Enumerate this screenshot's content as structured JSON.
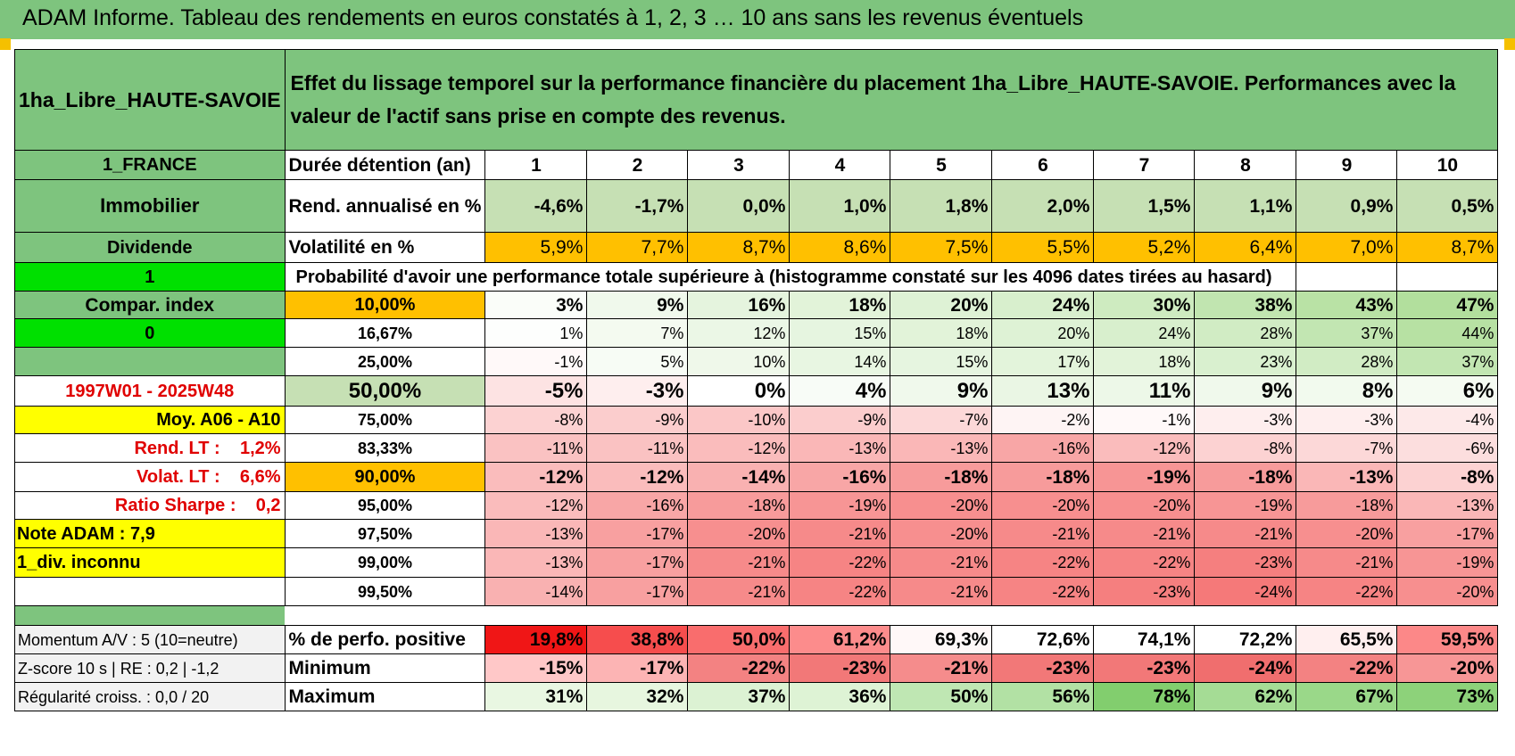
{
  "header": {
    "title": "ADAM Informe. Tableau des rendements en euros constatés à 1, 2, 3 … 10 ans sans les revenus éventuels"
  },
  "asset": {
    "name": "1ha_Libre_HAUTE-SAVOIE",
    "description": "Effet du lissage temporel sur la performance financière du placement 1ha_Libre_HAUTE-SAVOIE. Performances avec la valeur de l'actif sans prise en compte des revenus."
  },
  "left_labels": {
    "country": "1_FRANCE",
    "category": "Immobilier",
    "income_type": "Dividende",
    "flag_1": "1",
    "compar_index": "Compar. index",
    "flag_0": "0",
    "period": "1997W01 - 2025W48",
    "moy": "Moy. A06 - A10",
    "rend_lt": "Rend. LT :    1,2%",
    "volat_lt": "Volat. LT :    6,6%",
    "sharpe": "Ratio Sharpe :    0,2",
    "note_adam": "Note ADAM : 7,9",
    "div": "1_div. inconnu",
    "momentum": "Momentum A/V : 5 (10=neutre)",
    "zscore": "Z-score 10 s | RE : 0,2 | -1,2",
    "regularite": "Régularité croiss. : 0,0 / 20"
  },
  "durations": {
    "label": "Durée détention (an)",
    "values": [
      "1",
      "2",
      "3",
      "4",
      "5",
      "6",
      "7",
      "8",
      "9",
      "10"
    ]
  },
  "rend": {
    "label": "Rend. annualisé en %",
    "values": [
      "-4,6%",
      "-1,7%",
      "0,0%",
      "1,0%",
      "1,8%",
      "2,0%",
      "1,5%",
      "1,1%",
      "0,9%",
      "0,5%"
    ]
  },
  "volat": {
    "label": "Volatilité en %",
    "values": [
      "5,9%",
      "7,7%",
      "8,7%",
      "8,6%",
      "7,5%",
      "5,5%",
      "5,2%",
      "6,4%",
      "7,0%",
      "8,7%"
    ]
  },
  "probability_title": "Probabilité d'avoir une performance totale supérieure à (histogramme constaté sur les 4096 dates tirées au hasard)",
  "probabilities": [
    {
      "label": "10,00%",
      "values": [
        "3%",
        "9%",
        "16%",
        "18%",
        "20%",
        "24%",
        "30%",
        "38%",
        "43%",
        "47%"
      ]
    },
    {
      "label": "16,67%",
      "values": [
        "1%",
        "7%",
        "12%",
        "15%",
        "18%",
        "20%",
        "24%",
        "28%",
        "37%",
        "44%"
      ]
    },
    {
      "label": "25,00%",
      "values": [
        "-1%",
        "5%",
        "10%",
        "14%",
        "15%",
        "17%",
        "18%",
        "23%",
        "28%",
        "37%"
      ]
    },
    {
      "label": "50,00%",
      "values": [
        "-5%",
        "-3%",
        "0%",
        "4%",
        "9%",
        "13%",
        "11%",
        "9%",
        "8%",
        "6%"
      ]
    },
    {
      "label": "75,00%",
      "values": [
        "-8%",
        "-9%",
        "-10%",
        "-9%",
        "-7%",
        "-2%",
        "-1%",
        "-3%",
        "-3%",
        "-4%"
      ]
    },
    {
      "label": "83,33%",
      "values": [
        "-11%",
        "-11%",
        "-12%",
        "-13%",
        "-13%",
        "-16%",
        "-12%",
        "-8%",
        "-7%",
        "-6%"
      ]
    },
    {
      "label": "90,00%",
      "values": [
        "-12%",
        "-12%",
        "-14%",
        "-16%",
        "-18%",
        "-18%",
        "-19%",
        "-18%",
        "-13%",
        "-8%"
      ]
    },
    {
      "label": "95,00%",
      "values": [
        "-12%",
        "-16%",
        "-18%",
        "-19%",
        "-20%",
        "-20%",
        "-20%",
        "-19%",
        "-18%",
        "-13%"
      ]
    },
    {
      "label": "97,50%",
      "values": [
        "-13%",
        "-17%",
        "-20%",
        "-21%",
        "-20%",
        "-21%",
        "-21%",
        "-21%",
        "-20%",
        "-17%"
      ]
    },
    {
      "label": "99,00%",
      "values": [
        "-13%",
        "-17%",
        "-21%",
        "-22%",
        "-21%",
        "-22%",
        "-22%",
        "-23%",
        "-21%",
        "-19%"
      ]
    },
    {
      "label": "99,50%",
      "values": [
        "-14%",
        "-17%",
        "-21%",
        "-22%",
        "-21%",
        "-22%",
        "-23%",
        "-24%",
        "-22%",
        "-20%"
      ]
    }
  ],
  "positive": {
    "label": "% de perfo. positive",
    "values": [
      "19,8%",
      "38,8%",
      "50,0%",
      "61,2%",
      "69,3%",
      "72,6%",
      "74,1%",
      "72,2%",
      "65,5%",
      "59,5%"
    ]
  },
  "minimum": {
    "label": "Minimum",
    "values": [
      "-15%",
      "-17%",
      "-22%",
      "-23%",
      "-21%",
      "-23%",
      "-23%",
      "-24%",
      "-22%",
      "-20%"
    ]
  },
  "maximum": {
    "label": "Maximum",
    "values": [
      "31%",
      "32%",
      "37%",
      "36%",
      "50%",
      "56%",
      "78%",
      "62%",
      "67%",
      "73%"
    ]
  },
  "colors": {
    "header_green": "#7ec47e",
    "bright_green": "#00e000",
    "yellow": "#ffff00",
    "orange": "#ffc000",
    "label_red": "#e00000"
  }
}
